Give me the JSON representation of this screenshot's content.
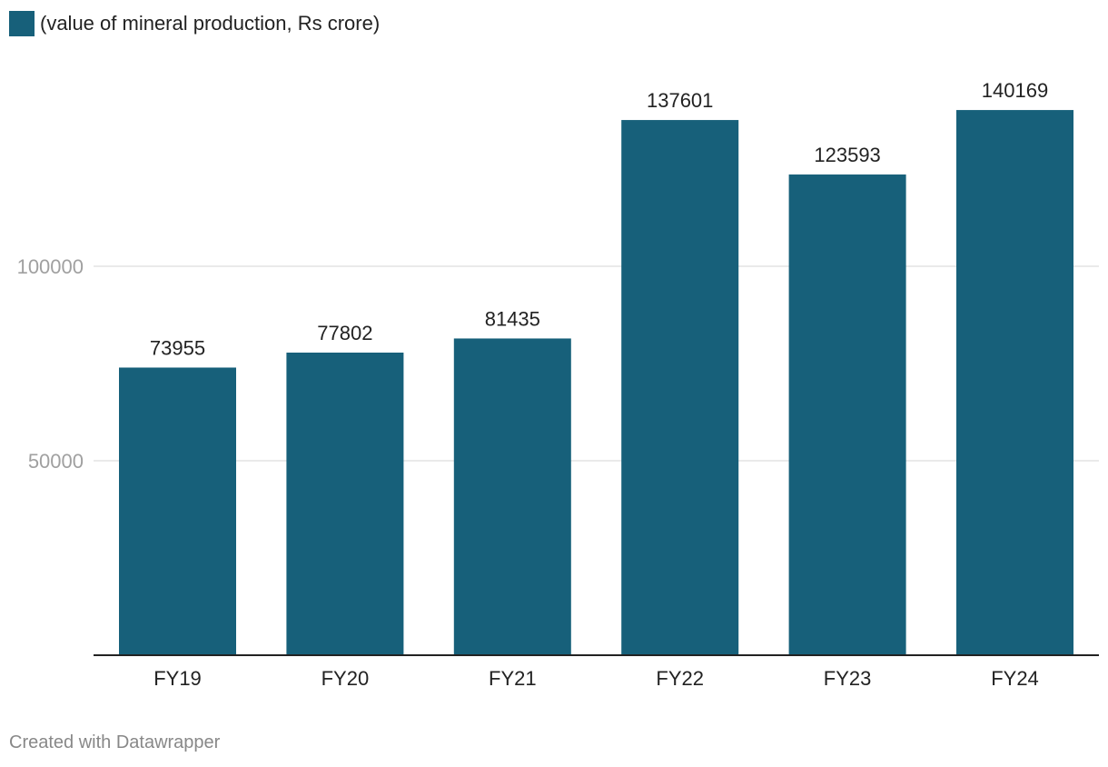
{
  "chart_data": {
    "type": "bar",
    "categories": [
      "FY19",
      "FY20",
      "FY21",
      "FY22",
      "FY23",
      "FY24"
    ],
    "series": [
      {
        "name": "(value of mineral production, Rs crore)",
        "values": [
          73955,
          77802,
          81435,
          137601,
          123593,
          140169
        ]
      }
    ],
    "ylim": [
      0,
      140169
    ],
    "yticks": [
      50000,
      100000
    ],
    "grid": true,
    "legend": "top-left",
    "xlabel": "",
    "ylabel": ""
  },
  "colors": {
    "bar": "#17607a",
    "grid": "#e4e4e4",
    "axis": "#222222",
    "tick_label": "#a0a0a0"
  },
  "footer": "Created with Datawrapper"
}
